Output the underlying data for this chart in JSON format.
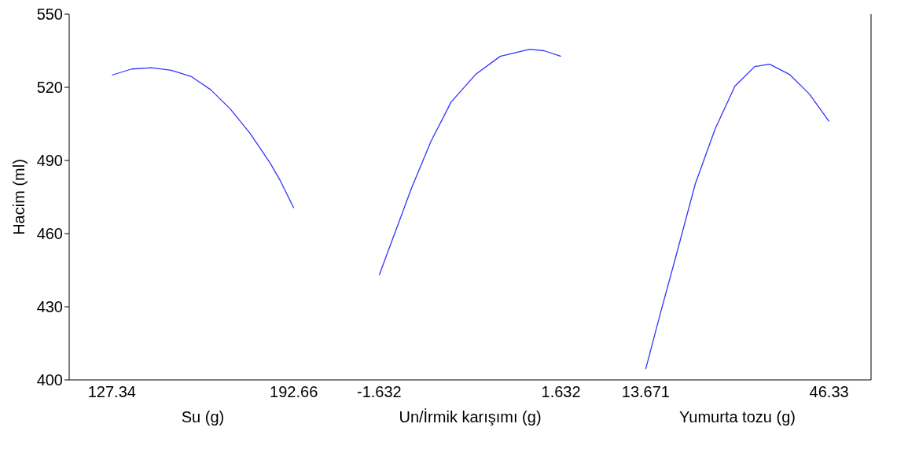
{
  "chart_data": [
    {
      "type": "line",
      "xlabel": "Su (g)",
      "ylabel": "Hacim (ml)",
      "x": [
        127.34,
        134.44,
        141.54,
        148.64,
        155.74,
        162.84,
        169.94,
        177.04,
        184.14,
        187.69,
        192.66
      ],
      "series": [
        {
          "color": "#3333ff",
          "values": [
            525,
            527.5,
            528,
            527,
            524.5,
            519,
            511,
            501,
            489,
            482,
            470.5
          ]
        }
      ],
      "xlim": [
        112,
        208
      ],
      "xticks": [
        127.34,
        192.66
      ],
      "ylim": [
        400,
        550
      ],
      "yticks": [
        400,
        430,
        460,
        490,
        520,
        550
      ],
      "grid": false,
      "legend": false
    },
    {
      "type": "line",
      "xlabel": "Un/İrmik karışımı (g)",
      "x": [
        -1.632,
        -1.31,
        -1.05,
        -0.7,
        -0.34,
        0.1,
        0.54,
        1.07,
        1.33,
        1.632
      ],
      "series": [
        {
          "color": "#3333ff",
          "values": [
            443,
            462.8,
            478.8,
            498,
            514,
            525.3,
            532.7,
            535.6,
            535,
            532.7
          ]
        }
      ],
      "xlim": [
        -2.4,
        2.4
      ],
      "xticks": [
        -1.632,
        1.632
      ],
      "ylim": [
        400,
        550
      ],
      "yticks": [
        400,
        430,
        460,
        490,
        520,
        550
      ],
      "tick_labels": "x",
      "grid": false,
      "legend": false
    },
    {
      "type": "line",
      "xlabel": "Yumurta tozu (g)",
      "x": [
        13.671,
        16.32,
        18.97,
        22.5,
        26.03,
        29.56,
        33.09,
        35.74,
        39.27,
        42.8,
        46.33
      ],
      "series": [
        {
          "color": "#3333ff",
          "values": [
            404.5,
            427.6,
            450,
            480.4,
            502.9,
            520.5,
            528.5,
            529.5,
            525.3,
            517.3,
            506
          ]
        }
      ],
      "xlim": [
        6.2,
        53.8
      ],
      "xticks": [
        13.671,
        46.33
      ],
      "ylim": [
        400,
        550
      ],
      "yticks": [
        400,
        430,
        460,
        490,
        520,
        550
      ],
      "tick_labels": "x",
      "grid": false,
      "legend": false
    }
  ]
}
